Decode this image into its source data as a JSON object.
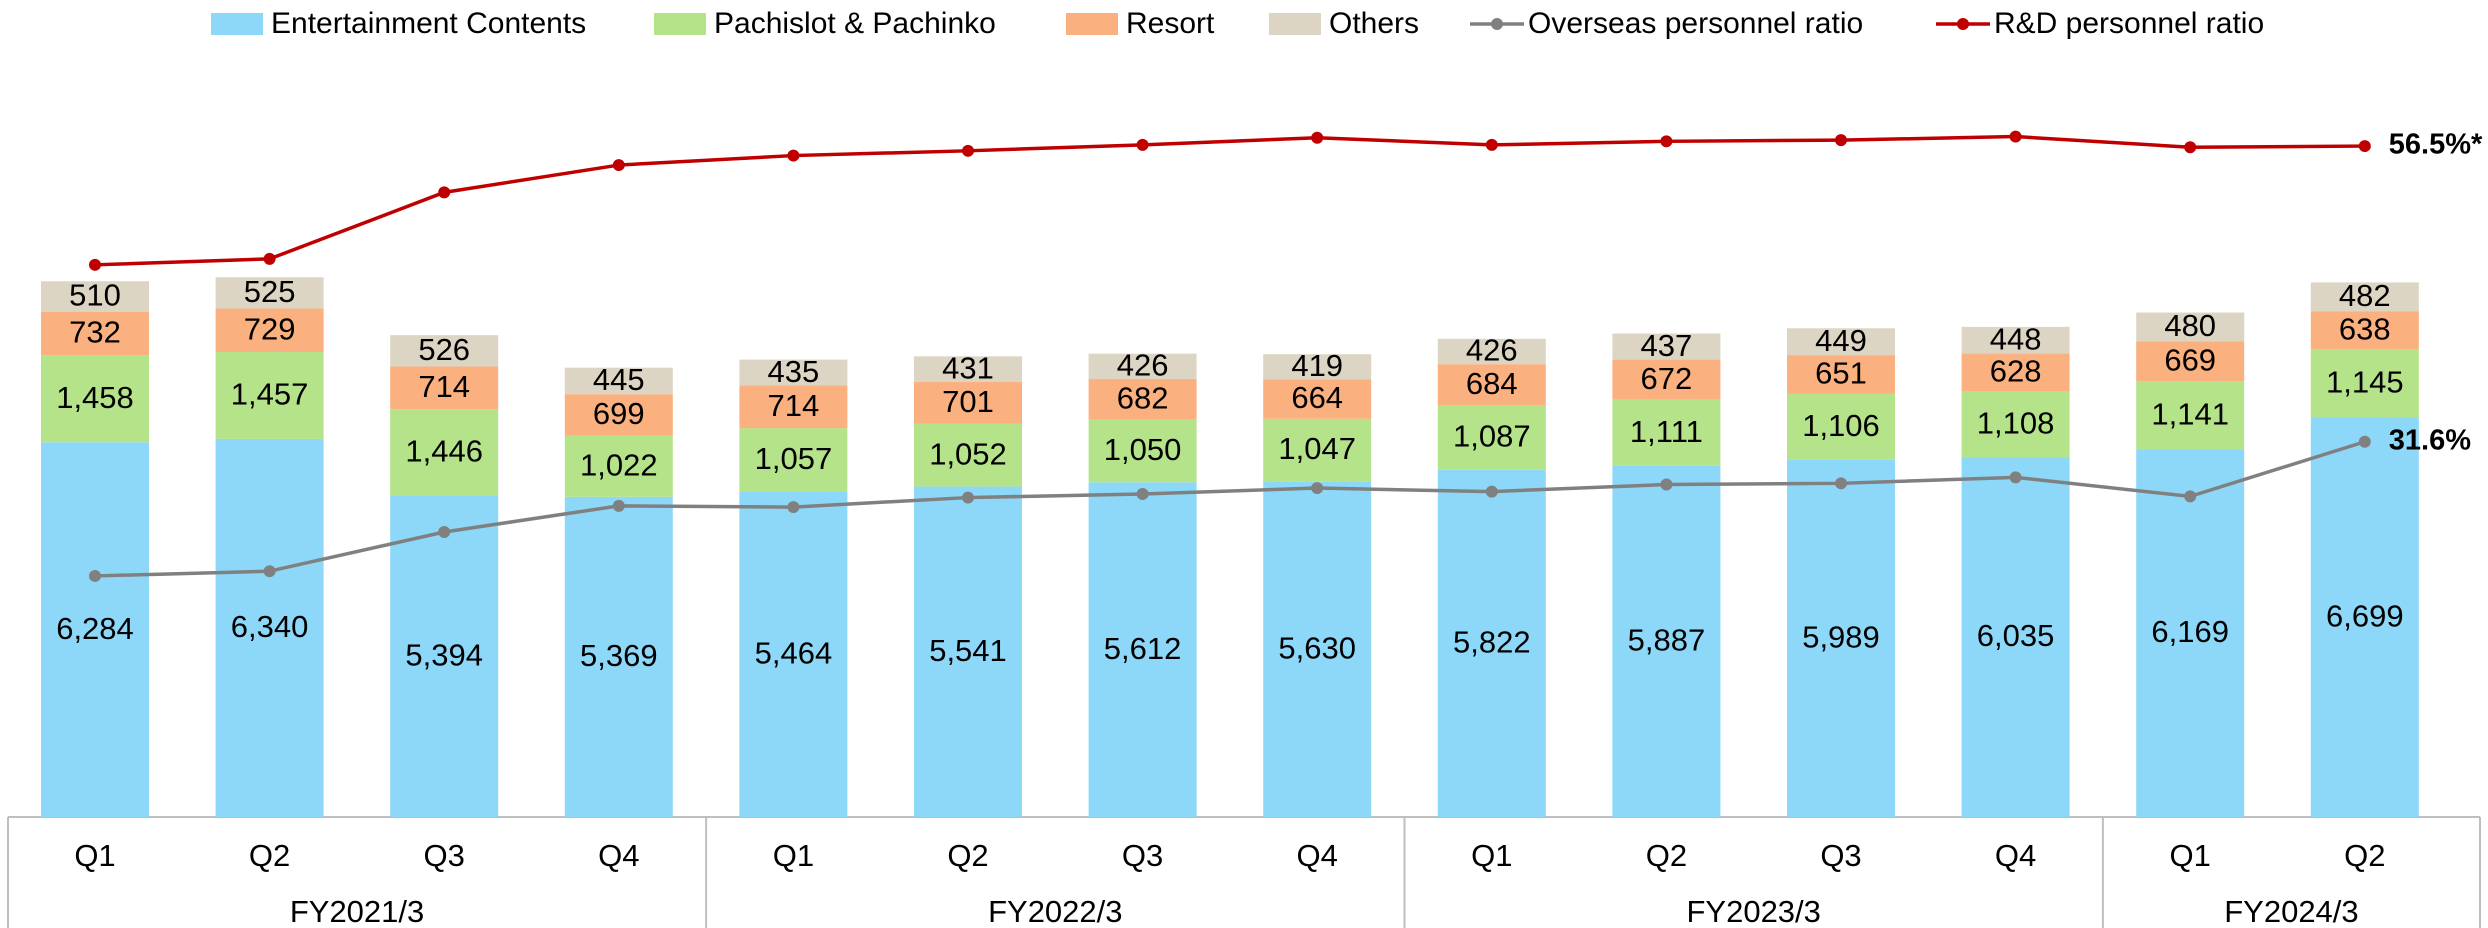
{
  "chart_data": {
    "type": "bar",
    "stacked": true,
    "groups": [
      {
        "label": "FY2021/3",
        "categories": [
          "Q1",
          "Q2",
          "Q3",
          "Q4"
        ]
      },
      {
        "label": "FY2022/3",
        "categories": [
          "Q1",
          "Q2",
          "Q3",
          "Q4"
        ]
      },
      {
        "label": "FY2023/3",
        "categories": [
          "Q1",
          "Q2",
          "Q3",
          "Q4"
        ]
      },
      {
        "label": "FY2024/3",
        "categories": [
          "Q1",
          "Q2"
        ]
      }
    ],
    "ylim": [
      0,
      13700
    ],
    "y2lim": [
      0,
      68.8
    ],
    "series": [
      {
        "name": "Entertainment Contents",
        "type": "bar",
        "color": "#8dd8f8",
        "values": [
          6284,
          6340,
          5394,
          5369,
          5464,
          5541,
          5612,
          5630,
          5822,
          5887,
          5989,
          6035,
          6169,
          6699
        ],
        "value_labels": [
          "6,284",
          "6,340",
          "5,394",
          "5,369",
          "5,464",
          "5,541",
          "5,612",
          "5,630",
          "5,822",
          "5,887",
          "5,989",
          "6,035",
          "6,169",
          "6,699"
        ]
      },
      {
        "name": "Pachislot & Pachinko",
        "type": "bar",
        "color": "#b4e38a",
        "values": [
          1458,
          1457,
          1446,
          1022,
          1057,
          1052,
          1050,
          1047,
          1087,
          1111,
          1106,
          1108,
          1141,
          1145
        ],
        "value_labels": [
          "1,458",
          "1,457",
          "1,446",
          "1,022",
          "1,057",
          "1,052",
          "1,050",
          "1,047",
          "1,087",
          "1,111",
          "1,106",
          "1,108",
          "1,141",
          "1,145"
        ]
      },
      {
        "name": "Resort",
        "type": "bar",
        "color": "#fbb07f",
        "values": [
          732,
          729,
          714,
          699,
          714,
          701,
          682,
          664,
          684,
          672,
          651,
          628,
          669,
          638
        ]
      },
      {
        "name": "Others",
        "type": "bar",
        "color": "#dcd5c3",
        "values": [
          510,
          525,
          526,
          445,
          435,
          431,
          426,
          419,
          426,
          437,
          449,
          448,
          480,
          482
        ]
      },
      {
        "name": "Overseas personnel ratio",
        "type": "line",
        "axis": "y2",
        "color": "#808080",
        "values": [
          20.3,
          20.7,
          24.0,
          26.2,
          26.1,
          26.9,
          27.2,
          27.7,
          27.4,
          28.0,
          28.1,
          28.6,
          27.0,
          31.6
        ],
        "value_labels": [
          null,
          null,
          null,
          null,
          null,
          null,
          null,
          null,
          null,
          null,
          null,
          null,
          null,
          "31.6%"
        ]
      },
      {
        "name": "R&D personnel ratio",
        "type": "line",
        "axis": "y2",
        "color": "#c00000",
        "values": [
          46.5,
          47.0,
          52.6,
          54.9,
          55.7,
          56.1,
          56.6,
          57.2,
          56.6,
          56.9,
          57.0,
          57.3,
          56.4,
          56.5
        ],
        "value_labels": [
          null,
          null,
          null,
          null,
          null,
          null,
          null,
          null,
          null,
          null,
          null,
          null,
          null,
          "56.5%*"
        ]
      }
    ]
  }
}
